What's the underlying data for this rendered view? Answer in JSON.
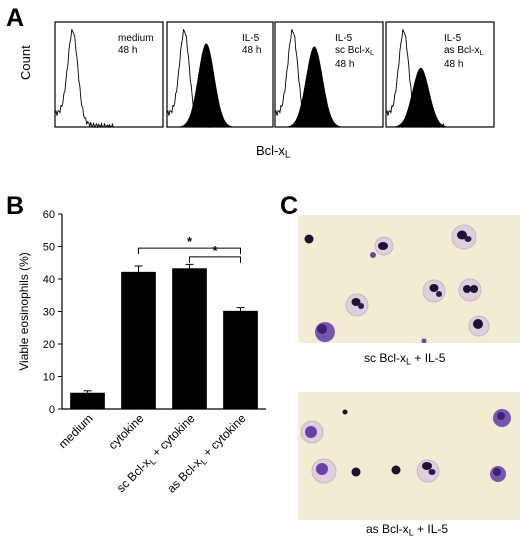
{
  "panel_a": {
    "letter": "A",
    "y_axis_label": "Count",
    "x_axis_label": "Bcl-x",
    "x_axis_label_sub": "L",
    "histograms": [
      {
        "lines": [
          "medium",
          "48 h"
        ],
        "filled_level": 0.0
      },
      {
        "lines": [
          "IL-5",
          "48 h"
        ],
        "filled_level": 0.75
      },
      {
        "lines": [
          "IL-5",
          "sc Bcl-x",
          "48 h"
        ],
        "sub_line": 1,
        "filled_level": 0.7
      },
      {
        "lines": [
          "IL-5",
          "as Bcl-x",
          "48 h"
        ],
        "sub_line": 1,
        "filled_level": 0.35
      }
    ]
  },
  "panel_b": {
    "letter": "B",
    "chart_data": {
      "type": "bar",
      "ylabel": "Viable eosinophils (%)",
      "ylim": [
        0,
        60
      ],
      "yticks": [
        0,
        10,
        20,
        30,
        40,
        50,
        60
      ],
      "categories": [
        "medium",
        "cytokine",
        "sc Bcl-xL + cytokine",
        "as Bcl-xL + cytokine"
      ],
      "category_parts": [
        {
          "pre": "medium",
          "sub": "",
          "post": ""
        },
        {
          "pre": "cytokine",
          "sub": "",
          "post": ""
        },
        {
          "pre": "sc Bcl-x",
          "sub": "L",
          "post": " + cytokine"
        },
        {
          "pre": "as Bcl-x",
          "sub": "L",
          "post": " + cytokine"
        }
      ],
      "values": [
        5,
        42.2,
        43.3,
        30.2
      ],
      "errors": [
        0.6,
        1.8,
        1.2,
        1.0
      ],
      "significance": [
        {
          "from": 1,
          "to": 3,
          "label": "*"
        },
        {
          "from": 2,
          "to": 3,
          "label": "*"
        }
      ]
    }
  },
  "panel_c": {
    "letter": "C",
    "captions": [
      {
        "pre": "sc Bcl-x",
        "sub": "L",
        "post": " + IL-5"
      },
      {
        "pre": "as Bcl-x",
        "sub": "L",
        "post": " + IL-5"
      }
    ]
  }
}
